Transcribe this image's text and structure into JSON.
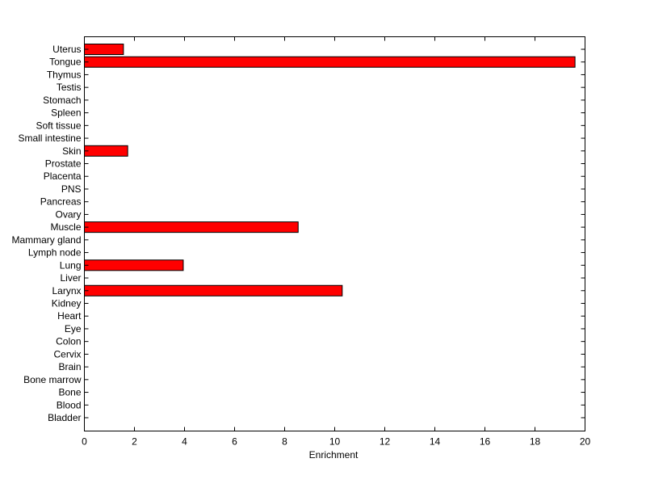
{
  "chart_data": {
    "type": "bar",
    "orientation": "horizontal",
    "title": "",
    "xlabel": "Enrichment",
    "ylabel": "",
    "xlim": [
      0,
      20
    ],
    "xticks": [
      0,
      2,
      4,
      6,
      8,
      10,
      12,
      14,
      16,
      18,
      20
    ],
    "grid": false,
    "bar_color": "#ff0000",
    "edge_color": "#000000",
    "categories": [
      "Uterus",
      "Tongue",
      "Thymus",
      "Testis",
      "Stomach",
      "Spleen",
      "Soft tissue",
      "Small intestine",
      "Skin",
      "Prostate",
      "Placenta",
      "PNS",
      "Pancreas",
      "Ovary",
      "Muscle",
      "Mammary gland",
      "Lymph node",
      "Lung",
      "Liver",
      "Larynx",
      "Kidney",
      "Heart",
      "Eye",
      "Colon",
      "Cervix",
      "Brain",
      "Bone marrow",
      "Bone",
      "Blood",
      "Bladder"
    ],
    "values": [
      1.56,
      19.6,
      0,
      0,
      0,
      0,
      0,
      0,
      1.73,
      0,
      0,
      0,
      0,
      0,
      8.54,
      0,
      0,
      3.95,
      0,
      10.3,
      0,
      0,
      0,
      0,
      0,
      0,
      0,
      0,
      0,
      0
    ]
  }
}
